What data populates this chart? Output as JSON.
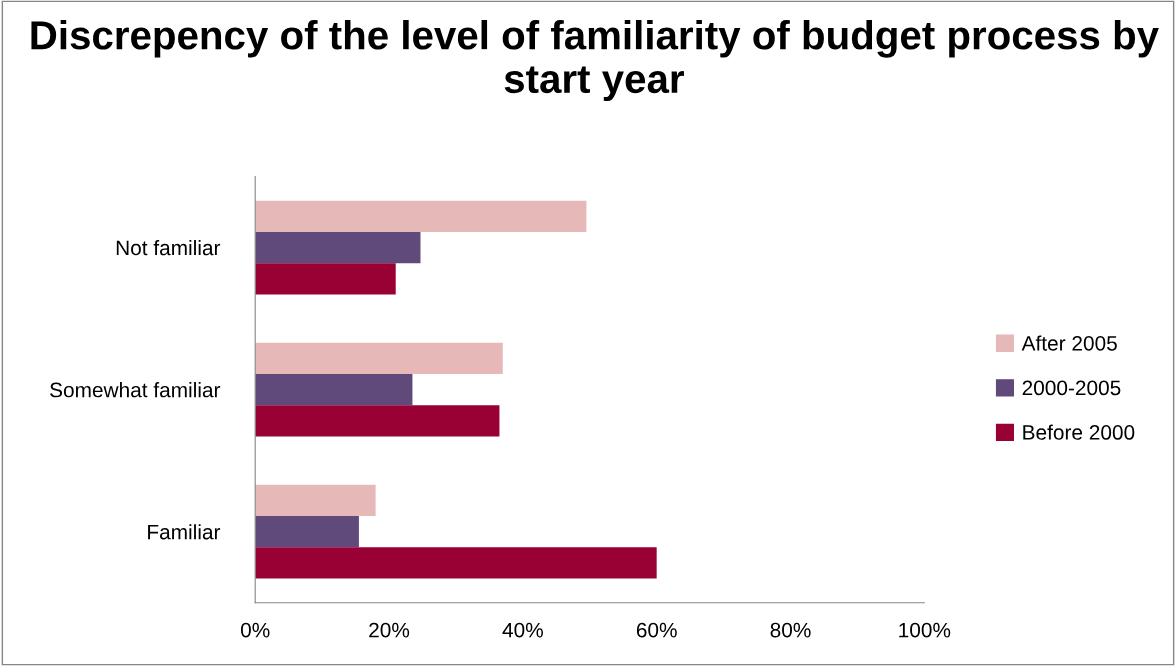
{
  "chart_data": {
    "type": "bar",
    "orientation": "horizontal",
    "title": "Discrepency of the level of familiarity of budget process by start year",
    "categories": [
      "Not familiar",
      "Somewhat familiar",
      "Familiar"
    ],
    "series": [
      {
        "name": "After 2005",
        "color": "#e6b9b8",
        "values": [
          49.5,
          37,
          18
        ]
      },
      {
        "name": "2000-2005",
        "color": "#604a7b",
        "values": [
          24.7,
          23.5,
          15.5
        ]
      },
      {
        "name": "Before 2000",
        "color": "#990033",
        "values": [
          21,
          36.5,
          60
        ]
      }
    ],
    "xlim": [
      0,
      100
    ],
    "xticks": [
      {
        "value": 0,
        "label": "0%"
      },
      {
        "value": 20,
        "label": "20%"
      },
      {
        "value": 40,
        "label": "40%"
      },
      {
        "value": 60,
        "label": "60%"
      },
      {
        "value": 80,
        "label": "80%"
      },
      {
        "value": 100,
        "label": "100%"
      }
    ],
    "grid": false,
    "legend": "right"
  }
}
